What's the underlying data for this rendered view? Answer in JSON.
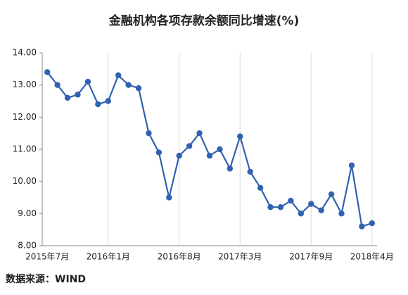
{
  "chart_data": {
    "type": "line",
    "title": "金融机构各项存款余额同比增速(%)",
    "source": "数据来源：WIND",
    "categories": [
      "2015年7月",
      null,
      null,
      null,
      null,
      null,
      "2016年1月",
      null,
      null,
      null,
      null,
      null,
      null,
      "2016年8月",
      null,
      null,
      null,
      null,
      null,
      "2017年3月",
      null,
      null,
      null,
      null,
      null,
      null,
      "2017年9月",
      null,
      null,
      null,
      null,
      null,
      "2018年4月"
    ],
    "series": [
      {
        "name": "金融机构各项存款余额同比增速",
        "color": "#2f62b0",
        "values": [
          13.4,
          13.0,
          12.6,
          12.7,
          13.1,
          12.4,
          12.5,
          13.3,
          13.0,
          12.9,
          11.5,
          10.9,
          9.5,
          10.8,
          11.1,
          11.5,
          10.8,
          11.0,
          10.4,
          11.4,
          10.3,
          9.8,
          9.2,
          9.2,
          9.4,
          9.0,
          9.3,
          9.1,
          9.6,
          9.0,
          10.5,
          8.6,
          8.7
        ]
      }
    ],
    "ylim": [
      8,
      14
    ],
    "yticks": [
      {
        "value": 8,
        "label": "8.00"
      },
      {
        "value": 9,
        "label": "9.00"
      },
      {
        "value": 10,
        "label": "10.00"
      },
      {
        "value": 11,
        "label": "11.00"
      },
      {
        "value": 12,
        "label": "12.00"
      },
      {
        "value": 13,
        "label": "13.00"
      },
      {
        "value": 14,
        "label": "14.00"
      }
    ],
    "grid": true
  }
}
